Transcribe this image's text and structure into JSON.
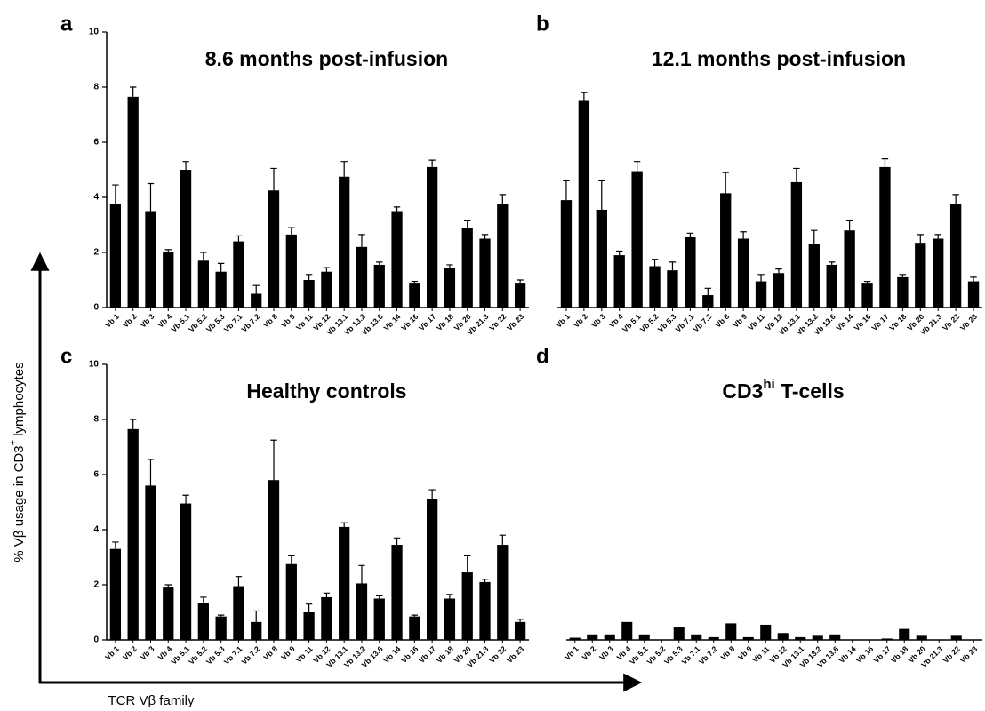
{
  "x_label": "TCR Vβ family",
  "y_label": {
    "text": "% Vβ usage in CD3",
    "sup": "+",
    "after": " lymphocytes"
  },
  "chart_data": [
    {
      "type": "bar",
      "panel": "a",
      "title": "8.6 months post-infusion",
      "color": "#000000",
      "categories": [
        "Vb 1",
        "Vb 2",
        "Vb 3",
        "Vb 4",
        "Vb 5.1",
        "Vb 5.2",
        "Vb 5.3",
        "Vb 7.1",
        "Vb 7.2",
        "Vb 8",
        "Vb 9",
        "Vb 11",
        "Vb 12",
        "Vb 13.1",
        "Vb 13.2",
        "Vb 13.6",
        "Vb 14",
        "Vb 16",
        "Vb 17",
        "Vb 18",
        "Vb 20",
        "Vb 21.3",
        "Vb 22",
        "Vb 23"
      ],
      "values": [
        3.75,
        7.65,
        3.5,
        2.0,
        5.0,
        1.7,
        1.3,
        2.4,
        0.5,
        4.25,
        2.65,
        1.0,
        1.3,
        4.75,
        2.2,
        1.55,
        3.5,
        0.9,
        5.1,
        1.45,
        2.9,
        2.5,
        3.75,
        0.9
      ],
      "errors": [
        0.7,
        0.35,
        1.0,
        0.1,
        0.3,
        0.3,
        0.3,
        0.2,
        0.3,
        0.8,
        0.25,
        0.2,
        0.15,
        0.55,
        0.45,
        0.1,
        0.15,
        0.05,
        0.25,
        0.1,
        0.25,
        0.15,
        0.35,
        0.1
      ],
      "ylim": [
        0,
        10
      ],
      "yticks": [
        0,
        2,
        4,
        6,
        8,
        10
      ]
    },
    {
      "type": "bar",
      "panel": "b",
      "title": "12.1 months post-infusion",
      "color": "#000000",
      "categories": [
        "Vb 1",
        "Vb 2",
        "Vb 3",
        "Vb 4",
        "Vb 5.1",
        "Vb 5.2",
        "Vb 5.3",
        "Vb 7.1",
        "Vb 7.2",
        "Vb 8",
        "Vb 9",
        "Vb 11",
        "Vb 12",
        "Vb 13.1",
        "Vb 13.2",
        "Vb 13.6",
        "Vb 14",
        "Vb 16",
        "Vb 17",
        "Vb 18",
        "Vb 20",
        "Vb 21.3",
        "Vb 22",
        "Vb 23"
      ],
      "values": [
        3.9,
        7.5,
        3.55,
        1.9,
        4.95,
        1.5,
        1.35,
        2.55,
        0.45,
        4.15,
        2.5,
        0.95,
        1.25,
        4.55,
        2.3,
        1.55,
        2.8,
        0.9,
        5.1,
        1.1,
        2.35,
        2.5,
        3.75,
        0.95
      ],
      "errors": [
        0.7,
        0.3,
        1.05,
        0.15,
        0.35,
        0.25,
        0.3,
        0.15,
        0.25,
        0.75,
        0.25,
        0.25,
        0.15,
        0.5,
        0.5,
        0.1,
        0.35,
        0.05,
        0.3,
        0.1,
        0.3,
        0.15,
        0.35,
        0.15
      ],
      "ylim": [
        0,
        10
      ]
    },
    {
      "type": "bar",
      "panel": "c",
      "title": "Healthy controls",
      "color": "#000000",
      "categories": [
        "Vb 1",
        "Vb 2",
        "Vb 3",
        "Vb 4",
        "Vb 5.1",
        "Vb 5.2",
        "Vb 5.3",
        "Vb 7.1",
        "Vb 7.2",
        "Vb 8",
        "Vb 9",
        "Vb 11",
        "Vb 12",
        "Vb 13.1",
        "Vb 13.2",
        "Vb 13.6",
        "Vb 14",
        "Vb 16",
        "Vb 17",
        "Vb 18",
        "Vb 20",
        "Vb 21.3",
        "Vb 22",
        "Vb 23"
      ],
      "values": [
        3.3,
        7.65,
        5.6,
        1.9,
        4.95,
        1.35,
        0.85,
        1.95,
        0.65,
        5.8,
        2.75,
        1.0,
        1.55,
        4.1,
        2.05,
        1.5,
        3.45,
        0.85,
        5.1,
        1.5,
        2.45,
        2.1,
        3.45,
        0.65
      ],
      "errors": [
        0.25,
        0.35,
        0.95,
        0.1,
        0.3,
        0.2,
        0.05,
        0.35,
        0.4,
        1.45,
        0.3,
        0.3,
        0.15,
        0.15,
        0.65,
        0.1,
        0.25,
        0.05,
        0.35,
        0.15,
        0.6,
        0.1,
        0.35,
        0.1
      ],
      "ylim": [
        0,
        10
      ],
      "yticks": [
        0,
        2,
        4,
        6,
        8,
        10
      ]
    },
    {
      "type": "bar",
      "panel": "d",
      "title": {
        "text": "CD3",
        "sup": "hi",
        "after": " T-cells"
      },
      "color": "#000000",
      "categories": [
        "Vb 1",
        "Vb 2",
        "Vb 3",
        "Vb 4",
        "Vb 5.1",
        "Vb 5.2",
        "Vb 5.3",
        "Vb 7.1",
        "Vb 7.2",
        "Vb 8",
        "Vb 9",
        "Vb 11",
        "Vb 12",
        "Vb 13.1",
        "Vb 13.2",
        "Vb 13.6",
        "Vb 14",
        "Vb 16",
        "Vb 17",
        "Vb 18",
        "Vb 20",
        "Vb 21.3",
        "Vb 22",
        "Vb 23"
      ],
      "values": [
        0.08,
        0.2,
        0.2,
        0.65,
        0.2,
        0,
        0.45,
        0.2,
        0.1,
        0.6,
        0.1,
        0.55,
        0.25,
        0.1,
        0.15,
        0.2,
        0,
        0,
        0.05,
        0.4,
        0.15,
        0,
        0.15,
        0
      ],
      "ylim": [
        0,
        10
      ]
    }
  ]
}
